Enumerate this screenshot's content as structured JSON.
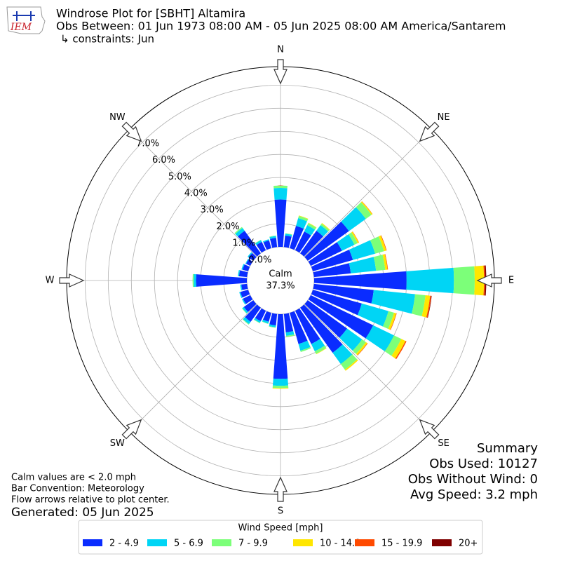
{
  "chart_data": {
    "type": "windrose",
    "logo_text": "IEM",
    "title": "Windrose Plot for [SBHT] Altamira",
    "subtitle": "Obs Between: 01 Jun 1973 08:00 AM - 05 Jun 2025 08:00 AM America/Santarem",
    "constraints": "↳ constraints: Jun",
    "x": [
      0,
      10,
      20,
      30,
      40,
      50,
      60,
      70,
      80,
      90,
      100,
      110,
      120,
      130,
      140,
      150,
      160,
      170,
      180,
      190,
      200,
      210,
      220,
      230,
      240,
      250,
      260,
      270,
      280,
      290,
      300,
      310,
      320,
      330,
      340,
      350
    ],
    "xticks": [
      {
        "value": 0,
        "label": "N"
      },
      {
        "value": 45,
        "label": "NE"
      },
      {
        "value": 90,
        "label": "E"
      },
      {
        "value": 135,
        "label": "SE"
      },
      {
        "value": 180,
        "label": "S"
      },
      {
        "value": 225,
        "label": "SW"
      },
      {
        "value": 270,
        "label": "W"
      },
      {
        "value": 315,
        "label": "NW"
      }
    ],
    "ylim": [
      0,
      7.8
    ],
    "yticks": [
      {
        "value": 0,
        "label": "0.0%"
      },
      {
        "value": 1,
        "label": "1.0%"
      },
      {
        "value": 2,
        "label": "2.0%"
      },
      {
        "value": 3,
        "label": "3.0%"
      },
      {
        "value": 4,
        "label": "4.0%"
      },
      {
        "value": 5,
        "label": "5.0%"
      },
      {
        "value": 6,
        "label": "6.0%"
      },
      {
        "value": 7,
        "label": "7.0%"
      }
    ],
    "grid": true,
    "calm": {
      "label": "Calm",
      "value": 37.3,
      "value_label": "37.3%"
    },
    "legend_title": "Wind Speed [mph]",
    "series": [
      {
        "name": "2 - 4.9",
        "color": "#0a2cff",
        "values": [
          2.05,
          0.5,
          1.0,
          0.9,
          1.2,
          2.2,
          1.5,
          1.8,
          1.6,
          4.0,
          2.6,
          2.2,
          3.0,
          2.1,
          2.4,
          1.6,
          1.4,
          0.8,
          2.8,
          0.5,
          0.4,
          0.5,
          0.75,
          0.5,
          0.35,
          0.35,
          0.25,
          2.2,
          0.35,
          0.25,
          0.2,
          0.25,
          1.2,
          0.4,
          0.35,
          0.4
        ]
      },
      {
        "name": "5 - 6.9",
        "color": "#00d5f5",
        "values": [
          0.5,
          0.08,
          0.35,
          0.3,
          0.3,
          0.9,
          0.6,
          1.0,
          1.1,
          2.05,
          1.8,
          1.2,
          1.0,
          0.8,
          0.6,
          0.35,
          0.3,
          0.15,
          0.3,
          0.08,
          0.08,
          0.08,
          0.12,
          0.08,
          0.05,
          0.05,
          0.05,
          0.1,
          0.05,
          0.05,
          0.03,
          0.05,
          0.15,
          0.08,
          0.05,
          0.08
        ]
      },
      {
        "name": "7 - 9.9",
        "color": "#7cff79",
        "values": [
          0.1,
          0.02,
          0.1,
          0.1,
          0.08,
          0.3,
          0.15,
          0.4,
          0.4,
          0.9,
          0.45,
          0.25,
          0.35,
          0.2,
          0.3,
          0.12,
          0.06,
          0.05,
          0.1,
          0.02,
          0.02,
          0.02,
          0.03,
          0.02,
          0,
          0,
          0,
          0.05,
          0,
          0,
          0,
          0,
          0.05,
          0.02,
          0,
          0.02
        ]
      },
      {
        "name": "10 - 14.9",
        "color": "#ffe600",
        "values": [
          0,
          0,
          0.02,
          0.02,
          0.03,
          0.05,
          0.06,
          0.1,
          0.1,
          0.4,
          0.2,
          0.1,
          0.2,
          0.08,
          0.06,
          0.02,
          0,
          0,
          0.03,
          0,
          0,
          0,
          0,
          0,
          0,
          0,
          0,
          0,
          0,
          0,
          0,
          0,
          0,
          0,
          0,
          0
        ]
      },
      {
        "name": "15 - 19.9",
        "color": "#ff4a00",
        "values": [
          0,
          0,
          0,
          0,
          0,
          0.01,
          0.01,
          0.02,
          0.02,
          0.05,
          0.05,
          0.02,
          0.05,
          0.02,
          0,
          0,
          0,
          0,
          0,
          0,
          0,
          0,
          0,
          0,
          0,
          0,
          0,
          0,
          0,
          0,
          0,
          0,
          0,
          0,
          0,
          0
        ]
      },
      {
        "name": "20+",
        "color": "#7f0000",
        "values": [
          0,
          0,
          0,
          0,
          0,
          0,
          0,
          0,
          0,
          0.05,
          0.02,
          0,
          0,
          0,
          0,
          0,
          0,
          0,
          0,
          0,
          0,
          0,
          0,
          0,
          0,
          0,
          0,
          0,
          0,
          0,
          0,
          0,
          0,
          0,
          0,
          0
        ]
      }
    ],
    "notes": [
      "Calm values are < 2.0 mph",
      "Bar Convention: Meteorology",
      "Flow arrows relative to plot center."
    ],
    "generated": "Generated: 05 Jun 2025",
    "summary": [
      "Summary",
      "Obs Used: 10127",
      "Obs Without Wind: 0",
      "Avg Speed: 3.2 mph"
    ]
  }
}
